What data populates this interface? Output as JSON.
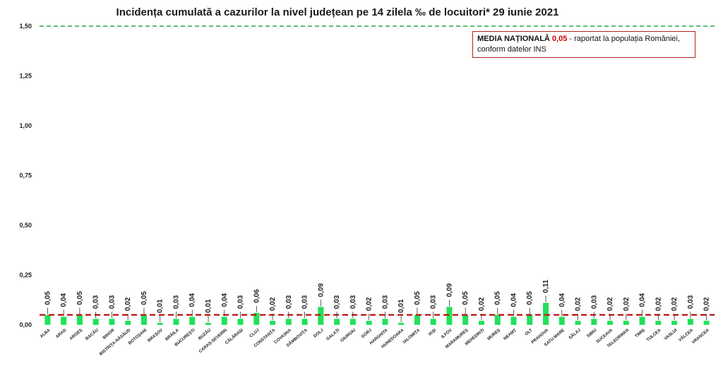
{
  "chart_data": {
    "type": "bar",
    "title": "Incidența cumulată a cazurilor la nivel județean pe 14 zilela ‰ de locuitori*  29 iunie 2021",
    "xlabel": "",
    "ylabel": "",
    "ylim": [
      0,
      1.5
    ],
    "yticks": [
      "0,00",
      "0,25",
      "0,50",
      "0,75",
      "1,00",
      "1,25",
      "1,50"
    ],
    "threshold_line": {
      "value": 1.5,
      "color": "#22a84a",
      "style": "dashed"
    },
    "national_average_line": {
      "value": 0.05,
      "color": "#c01818",
      "style": "dashed"
    },
    "bar_color": "#22e05a",
    "categories": [
      "ALBA",
      "ARAD",
      "ARGEȘ",
      "BACĂU",
      "BIHOR",
      "BISTRIȚA-NĂSĂUD",
      "BOTOȘANI",
      "BRAȘOV",
      "BRĂILA",
      "BUCUREȘTI",
      "BUZĂU",
      "CARAȘ-SEVERIN",
      "CĂLĂRAȘI",
      "CLUJ",
      "CONSTANȚA",
      "COVASNA",
      "DÂMBOVIȚA",
      "DOLJ",
      "GALAȚI",
      "GIURGIU",
      "GORJ",
      "HARGHITA",
      "HUNEDOARA",
      "IALOMIȚA",
      "IAȘI",
      "ILFOV",
      "MARAMUREȘ",
      "MEHEDINȚI",
      "MUREȘ",
      "NEAMȚ",
      "OLT",
      "PRAHOVA",
      "SATU MARE",
      "SĂLAJ",
      "SIBIU",
      "SUCEAVA",
      "TELEORMAN",
      "TIMIȘ",
      "TULCEA",
      "VASLUI",
      "VÂLCEA",
      "VRANCEA"
    ],
    "values": [
      0.05,
      0.04,
      0.05,
      0.03,
      0.03,
      0.02,
      0.05,
      0.01,
      0.03,
      0.04,
      0.01,
      0.04,
      0.03,
      0.06,
      0.02,
      0.03,
      0.03,
      0.09,
      0.03,
      0.03,
      0.02,
      0.03,
      0.01,
      0.05,
      0.03,
      0.09,
      0.05,
      0.02,
      0.05,
      0.04,
      0.05,
      0.11,
      0.04,
      0.02,
      0.03,
      0.02,
      0.02,
      0.04,
      0.02,
      0.02,
      0.03,
      0.02
    ],
    "value_labels": [
      "0,05",
      "0,04",
      "0,05",
      "0,03",
      "0,03",
      "0,02",
      "0,05",
      "0,01",
      "0,03",
      "0,04",
      "0,01",
      "0,04",
      "0,03",
      "0,06",
      "0,02",
      "0,03",
      "0,03",
      "0,09",
      "0,03",
      "0,03",
      "0,02",
      "0,03",
      "0,01",
      "0,05",
      "0,03",
      "0,09",
      "0,05",
      "0,02",
      "0,05",
      "0,04",
      "0,05",
      "0,11",
      "0,04",
      "0,02",
      "0,03",
      "0,02",
      "0,02",
      "0,04",
      "0,02",
      "0,02",
      "0,03",
      "0,02"
    ]
  },
  "note": {
    "bold_prefix": "MEDIA NAȚIONALĂ ",
    "value": "0,05",
    "suffix": " - raportat la populația României,",
    "line2": "conform datelor INS"
  }
}
